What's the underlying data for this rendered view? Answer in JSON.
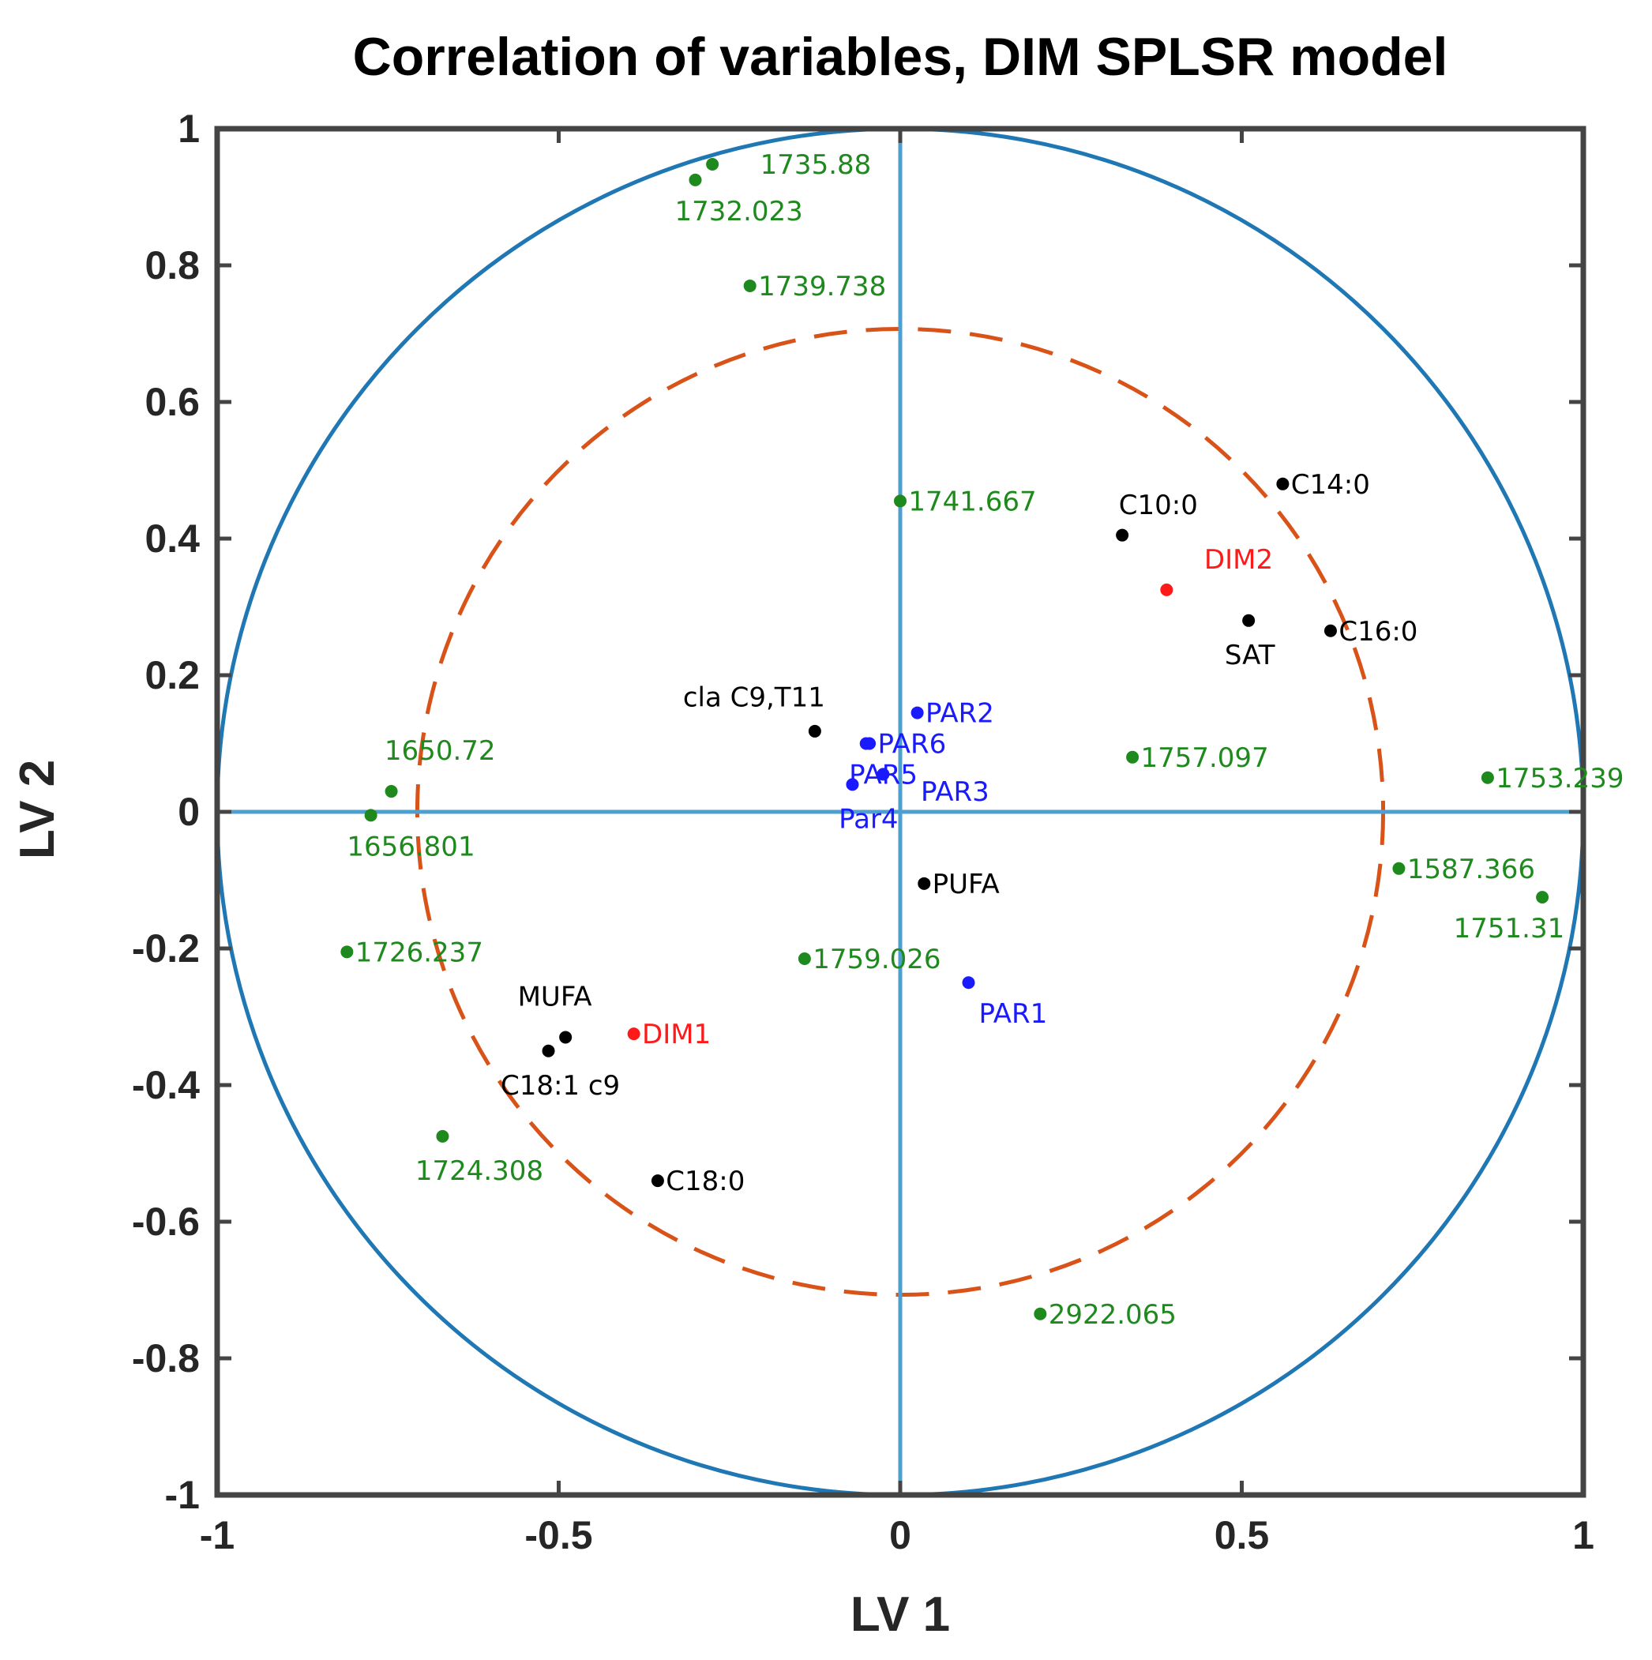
{
  "colors": {
    "unit_circle": "#1f77b4",
    "half_circle": "#d95319",
    "cross_axes": "#4d9fcf",
    "frame": "#444444",
    "wavenumber": "#1e8a1e",
    "fatty_acid": "#000000",
    "parameter": "#1a1aff",
    "response": "#ff1a1a"
  },
  "chart_data": {
    "type": "scatter",
    "title": "Correlation of variables, DIM SPLSR model",
    "xlabel": "LV 1",
    "ylabel": "LV 2",
    "xlim": [
      -1,
      1
    ],
    "ylim": [
      -1,
      1
    ],
    "grid": false,
    "xticks": [
      {
        "value": -1,
        "label": "-1"
      },
      {
        "value": -0.5,
        "label": "-0.5"
      },
      {
        "value": 0,
        "label": "0"
      },
      {
        "value": 0.5,
        "label": "0.5"
      },
      {
        "value": 1,
        "label": "1"
      }
    ],
    "yticks": [
      {
        "value": 1,
        "label": "1"
      },
      {
        "value": 0.8,
        "label": "0.8"
      },
      {
        "value": 0.6,
        "label": "0.6"
      },
      {
        "value": 0.4,
        "label": "0.4"
      },
      {
        "value": 0.2,
        "label": "0.2"
      },
      {
        "value": 0,
        "label": "0"
      },
      {
        "value": -0.2,
        "label": "-0.2"
      },
      {
        "value": -0.4,
        "label": "-0.4"
      },
      {
        "value": -0.6,
        "label": "-0.6"
      },
      {
        "value": -0.8,
        "label": "-0.8"
      },
      {
        "value": -1,
        "label": "-1"
      }
    ],
    "circles": [
      {
        "name": "unit-circle",
        "radius": 1,
        "style": "solid",
        "color": "unit_circle"
      },
      {
        "name": "half-variance-circle",
        "radius": 0.707,
        "style": "dashed",
        "color": "half_circle"
      }
    ],
    "series": [
      {
        "name": "wavenumbers",
        "color": "wavenumber",
        "points": [
          {
            "label": "1735.88",
            "x": -0.275,
            "y": 0.948,
            "anchor": "start",
            "dx": 0.07,
            "dy": 0.0
          },
          {
            "label": "1732.023",
            "x": -0.3,
            "y": 0.925,
            "anchor": "start",
            "dx": -0.03,
            "dy": -0.045
          },
          {
            "label": "1739.738",
            "x": -0.22,
            "y": 0.77,
            "anchor": "start",
            "dx": 0.012,
            "dy": 0.0
          },
          {
            "label": "1741.667",
            "x": 0.0,
            "y": 0.455,
            "anchor": "start",
            "dx": 0.012,
            "dy": 0.0
          },
          {
            "label": "1650.72",
            "x": -0.745,
            "y": 0.03,
            "anchor": "start",
            "dx": -0.01,
            "dy": 0.06
          },
          {
            "label": "1656.801",
            "x": -0.775,
            "y": -0.005,
            "anchor": "start",
            "dx": -0.035,
            "dy": -0.045
          },
          {
            "label": "1726.237",
            "x": -0.81,
            "y": -0.205,
            "anchor": "start",
            "dx": 0.012,
            "dy": 0.0
          },
          {
            "label": "1724.308",
            "x": -0.67,
            "y": -0.475,
            "anchor": "start",
            "dx": -0.04,
            "dy": -0.05
          },
          {
            "label": "1759.026",
            "x": -0.14,
            "y": -0.215,
            "anchor": "start",
            "dx": 0.012,
            "dy": 0.0
          },
          {
            "label": "1757.097",
            "x": 0.34,
            "y": 0.08,
            "anchor": "start",
            "dx": 0.012,
            "dy": 0.0
          },
          {
            "label": "1753.239",
            "x": 0.86,
            "y": 0.05,
            "anchor": "start",
            "dx": 0.012,
            "dy": 0.0
          },
          {
            "label": "1587.366",
            "x": 0.73,
            "y": -0.083,
            "anchor": "start",
            "dx": 0.012,
            "dy": 0.0
          },
          {
            "label": "1751.31",
            "x": 0.94,
            "y": -0.125,
            "anchor": "start",
            "dx": -0.13,
            "dy": -0.045
          },
          {
            "label": "2922.065",
            "x": 0.205,
            "y": -0.735,
            "anchor": "start",
            "dx": 0.012,
            "dy": 0.0
          }
        ]
      },
      {
        "name": "fatty-acids",
        "color": "fatty_acid",
        "points": [
          {
            "label": "C10:0",
            "x": 0.325,
            "y": 0.405,
            "anchor": "start",
            "dx": -0.005,
            "dy": 0.045
          },
          {
            "label": "C14:0",
            "x": 0.56,
            "y": 0.48,
            "anchor": "start",
            "dx": 0.012,
            "dy": 0.0
          },
          {
            "label": "SAT",
            "x": 0.51,
            "y": 0.28,
            "anchor": "start",
            "dx": -0.035,
            "dy": -0.05
          },
          {
            "label": "C16:0",
            "x": 0.63,
            "y": 0.265,
            "anchor": "start",
            "dx": 0.012,
            "dy": 0.0
          },
          {
            "label": "cla C9,T11",
            "x": -0.125,
            "y": 0.118,
            "anchor": "end",
            "dx": 0.015,
            "dy": 0.05
          },
          {
            "label": "PUFA",
            "x": 0.035,
            "y": -0.105,
            "anchor": "start",
            "dx": 0.012,
            "dy": 0.0
          },
          {
            "label": "MUFA",
            "x": -0.49,
            "y": -0.33,
            "anchor": "start",
            "dx": -0.07,
            "dy": 0.06
          },
          {
            "label": "C18:1 c9",
            "x": -0.515,
            "y": -0.35,
            "anchor": "start",
            "dx": -0.07,
            "dy": -0.05
          },
          {
            "label": "C18:0",
            "x": -0.355,
            "y": -0.54,
            "anchor": "start",
            "dx": 0.012,
            "dy": 0.0
          }
        ]
      },
      {
        "name": "parameters",
        "color": "parameter",
        "points": [
          {
            "label": "PAR2",
            "x": 0.025,
            "y": 0.145,
            "anchor": "start",
            "dx": 0.012,
            "dy": 0.0
          },
          {
            "label": "PAR6",
            "x": -0.045,
            "y": 0.1,
            "anchor": "start",
            "dx": 0.012,
            "dy": 0.0
          },
          {
            "label": "PAR5",
            "x": -0.05,
            "y": 0.1,
            "anchor": "start",
            "dx": -0.025,
            "dy": -0.045
          },
          {
            "label": "PAR3",
            "x": -0.025,
            "y": 0.055,
            "anchor": "start",
            "dx": 0.055,
            "dy": -0.025
          },
          {
            "label": "Par4",
            "x": -0.07,
            "y": 0.04,
            "anchor": "start",
            "dx": -0.02,
            "dy": -0.05
          },
          {
            "label": "PAR1",
            "x": 0.1,
            "y": -0.25,
            "anchor": "start",
            "dx": 0.015,
            "dy": -0.045
          }
        ]
      },
      {
        "name": "responses",
        "color": "response",
        "points": [
          {
            "label": "DIM2",
            "x": 0.39,
            "y": 0.325,
            "anchor": "start",
            "dx": 0.055,
            "dy": 0.045
          },
          {
            "label": "DIM1",
            "x": -0.39,
            "y": -0.325,
            "anchor": "start",
            "dx": 0.012,
            "dy": 0.0
          }
        ]
      }
    ]
  }
}
